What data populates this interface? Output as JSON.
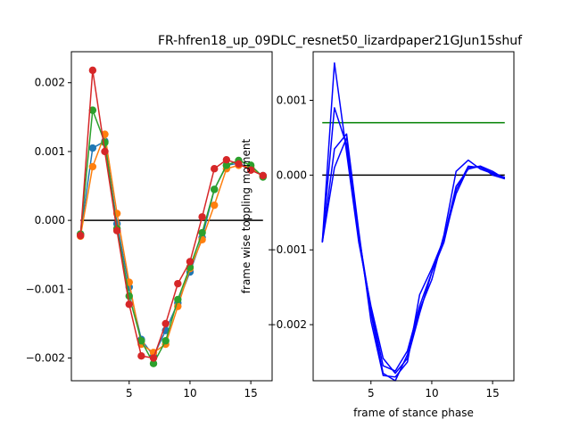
{
  "figure": {
    "title": "FR-hfren18_up_09DLC_resnet50_lizardpaper21GJun15shuf"
  },
  "chart_data": [
    {
      "type": "line",
      "markers": true,
      "title": "",
      "xlabel": "",
      "ylabel": "",
      "xlim": [
        0.25,
        16.75
      ],
      "ylim": [
        -0.00233,
        0.00245
      ],
      "xticks": [
        5,
        10,
        15
      ],
      "yticks": [
        -0.002,
        -0.001,
        0.0,
        0.001,
        0.002
      ],
      "ytick_labels": [
        "−0.002",
        "−0.001",
        "0.000",
        "0.001",
        "0.002"
      ],
      "x": [
        1,
        2,
        3,
        4,
        5,
        6,
        7,
        8,
        9,
        10,
        11,
        12,
        13,
        14,
        15,
        16
      ],
      "reference_line": {
        "y": 0.0,
        "x_from": 1,
        "x_to": 16,
        "color": "#000000"
      },
      "series": [
        {
          "color": "#1f77b4",
          "values": [
            -0.0002,
            0.00105,
            0.00115,
            -5e-05,
            -0.00097,
            -0.00173,
            -0.00197,
            -0.0016,
            -0.0012,
            -0.00075,
            -0.00025,
            0.00045,
            0.0008,
            0.00083,
            0.00075,
            0.00065
          ]
        },
        {
          "color": "#ff7f0e",
          "values": [
            -0.00023,
            0.00078,
            0.00125,
            0.0001,
            -0.0009,
            -0.0018,
            -0.00192,
            -0.0018,
            -0.00125,
            -0.0007,
            -0.00028,
            0.00022,
            0.00075,
            0.0008,
            0.00077,
            0.00064
          ]
        },
        {
          "color": "#2ca02c",
          "values": [
            -0.0002,
            0.0016,
            0.00113,
            -0.00012,
            -0.0011,
            -0.00175,
            -0.00208,
            -0.00175,
            -0.00115,
            -0.00068,
            -0.00018,
            0.00045,
            0.0008,
            0.00087,
            0.0008,
            0.00063
          ]
        },
        {
          "color": "#d62728",
          "values": [
            -0.00022,
            0.00218,
            0.001,
            -0.00015,
            -0.00122,
            -0.00197,
            -0.002,
            -0.0015,
            -0.00092,
            -0.0006,
            5e-05,
            0.00075,
            0.00088,
            0.00082,
            0.00073,
            0.00065
          ]
        }
      ]
    },
    {
      "type": "line",
      "markers": false,
      "title": "",
      "xlabel": "frame of stance phase",
      "ylabel": "frame wise toppling moment",
      "xlim": [
        0.25,
        16.75
      ],
      "ylim": [
        -0.00275,
        0.00165
      ],
      "xticks": [
        5,
        10,
        15
      ],
      "yticks": [
        -0.002,
        -0.001,
        0.0,
        0.001
      ],
      "ytick_labels": [
        "−0.002",
        "−0.001",
        "0.000",
        "0.001"
      ],
      "x": [
        1,
        2,
        3,
        4,
        5,
        6,
        7,
        8,
        9,
        10,
        11,
        12,
        13,
        14,
        15,
        16
      ],
      "reference_lines": [
        {
          "y": 0.0,
          "x_from": 1,
          "x_to": 16,
          "color": "#000000"
        },
        {
          "y": 0.0007,
          "x_from": 1,
          "x_to": 16,
          "color": "#008000"
        }
      ],
      "series": [
        {
          "color": "#0000ff",
          "values": [
            -0.0009,
            0.0015,
            0.0003,
            -0.0009,
            -0.00175,
            -0.00245,
            -0.00265,
            -0.00245,
            -0.00185,
            -0.0013,
            -0.00085,
            -0.00025,
            0.0001,
            0.00012,
            0.0,
            -5e-05
          ]
        },
        {
          "color": "#0000ff",
          "values": [
            -0.0009,
            0.0009,
            0.0004,
            -0.00085,
            -0.00185,
            -0.00265,
            -0.00275,
            -0.0024,
            -0.0018,
            -0.0014,
            -0.0008,
            5e-05,
            0.0002,
            8e-05,
            2e-05,
            -3e-05
          ]
        },
        {
          "color": "#0000ff",
          "values": [
            -0.0009,
            0.00035,
            0.00055,
            -0.00075,
            -0.00195,
            -0.00268,
            -0.0027,
            -0.0025,
            -0.0016,
            -0.00125,
            -0.00085,
            -0.00015,
            8e-05,
            0.00012,
            5e-05,
            -5e-05
          ]
        },
        {
          "color": "#0000ff",
          "values": [
            -0.0009,
            0.0001,
            0.0005,
            -0.0008,
            -0.0018,
            -0.00255,
            -0.00262,
            -0.00235,
            -0.00175,
            -0.0013,
            -0.0009,
            -0.0002,
            0.00012,
            0.0001,
            3e-05,
            -4e-05
          ]
        }
      ]
    }
  ]
}
